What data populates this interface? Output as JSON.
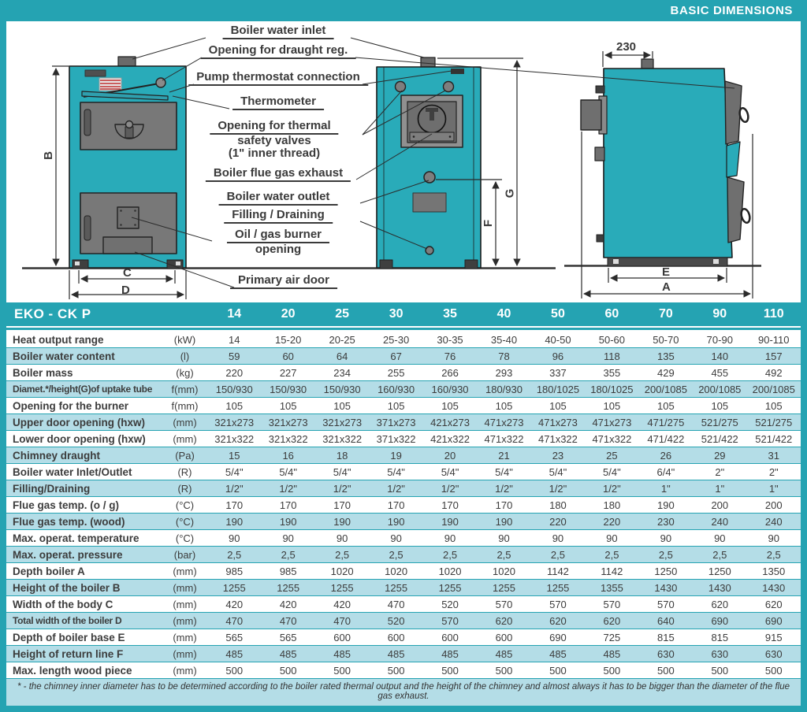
{
  "banner": {
    "title": "BASIC DIMENSIONS"
  },
  "diagram": {
    "callouts": [
      {
        "text": "Boiler water inlet"
      },
      {
        "text": "Opening for draught reg."
      },
      {
        "text": "Pump thermostat connection"
      },
      {
        "text": "Thermometer"
      },
      {
        "line1": "Opening for thermal",
        "line2": "safety valves",
        "line3": "(1\" inner thread)"
      },
      {
        "text": "Boiler flue gas exhaust"
      },
      {
        "text": "Boiler water outlet"
      },
      {
        "text": "Filling / Draining"
      },
      {
        "line1": "Oil / gas burner",
        "line2": "opening"
      },
      {
        "text": "Primary air door"
      }
    ],
    "dims": {
      "B": "B",
      "C": "C",
      "D": "D",
      "F": "F",
      "G": "G",
      "E": "E",
      "A": "A",
      "top_width": "230"
    }
  },
  "table": {
    "model": "EKO - CK P",
    "columns": [
      "14",
      "20",
      "25",
      "30",
      "35",
      "40",
      "50",
      "60",
      "70",
      "90",
      "110"
    ],
    "rows": [
      {
        "label": "Heat output range",
        "unit": "(kW)",
        "values": [
          "14",
          "15-20",
          "20-25",
          "25-30",
          "30-35",
          "35-40",
          "40-50",
          "50-60",
          "50-70",
          "70-90",
          "90-110"
        ]
      },
      {
        "label": "Boiler water content",
        "unit": "(l)",
        "values": [
          "59",
          "60",
          "64",
          "67",
          "76",
          "78",
          "96",
          "118",
          "135",
          "140",
          "157"
        ]
      },
      {
        "label": "Boiler mass",
        "unit": "(kg)",
        "values": [
          "220",
          "227",
          "234",
          "255",
          "266",
          "293",
          "337",
          "355",
          "429",
          "455",
          "492"
        ]
      },
      {
        "label": "Diamet.*/height(G)of uptake tube",
        "unit": "f(mm)",
        "values": [
          "150/930",
          "150/930",
          "150/930",
          "160/930",
          "160/930",
          "180/930",
          "180/1025",
          "180/1025",
          "200/1085",
          "200/1085",
          "200/1085"
        ]
      },
      {
        "label": "Opening for the burner",
        "unit": "f(mm)",
        "values": [
          "105",
          "105",
          "105",
          "105",
          "105",
          "105",
          "105",
          "105",
          "105",
          "105",
          "105"
        ]
      },
      {
        "label": "Upper door opening (hxw)",
        "unit": "(mm)",
        "values": [
          "321x273",
          "321x273",
          "321x273",
          "371x273",
          "421x273",
          "471x273",
          "471x273",
          "471x273",
          "471/275",
          "521/275",
          "521/275"
        ]
      },
      {
        "label": "Lower door opening (hxw)",
        "unit": "(mm)",
        "values": [
          "321x322",
          "321x322",
          "321x322",
          "371x322",
          "421x322",
          "471x322",
          "471x322",
          "471x322",
          "471/422",
          "521/422",
          "521/422"
        ]
      },
      {
        "label": "Chimney draught",
        "unit": "(Pa)",
        "values": [
          "15",
          "16",
          "18",
          "19",
          "20",
          "21",
          "23",
          "25",
          "26",
          "29",
          "31"
        ]
      },
      {
        "label": "Boiler water Inlet/Outlet",
        "unit": "(R)",
        "values": [
          "5/4\"",
          "5/4\"",
          "5/4\"",
          "5/4\"",
          "5/4\"",
          "5/4\"",
          "5/4\"",
          "5/4\"",
          "6/4\"",
          "2\"",
          "2\""
        ]
      },
      {
        "label": "Filling/Draining",
        "unit": "(R)",
        "values": [
          "1/2\"",
          "1/2\"",
          "1/2\"",
          "1/2\"",
          "1/2\"",
          "1/2\"",
          "1/2\"",
          "1/2\"",
          "1\"",
          "1\"",
          "1\""
        ]
      },
      {
        "label": "Flue gas temp. (o / g)",
        "unit": "(°C)",
        "values": [
          "170",
          "170",
          "170",
          "170",
          "170",
          "170",
          "180",
          "180",
          "190",
          "200",
          "200"
        ]
      },
      {
        "label": "Flue gas temp. (wood)",
        "unit": "(°C)",
        "values": [
          "190",
          "190",
          "190",
          "190",
          "190",
          "190",
          "220",
          "220",
          "230",
          "240",
          "240"
        ]
      },
      {
        "label": "Max. operat. temperature",
        "unit": "(°C)",
        "values": [
          "90",
          "90",
          "90",
          "90",
          "90",
          "90",
          "90",
          "90",
          "90",
          "90",
          "90"
        ]
      },
      {
        "label": "Max. operat. pressure",
        "unit": "(bar)",
        "values": [
          "2,5",
          "2,5",
          "2,5",
          "2,5",
          "2,5",
          "2,5",
          "2,5",
          "2,5",
          "2,5",
          "2,5",
          "2,5"
        ]
      },
      {
        "label": "Depth boiler A",
        "unit": "(mm)",
        "values": [
          "985",
          "985",
          "1020",
          "1020",
          "1020",
          "1020",
          "1142",
          "1142",
          "1250",
          "1250",
          "1350"
        ]
      },
      {
        "label": "Height of the boiler B",
        "unit": "(mm)",
        "values": [
          "1255",
          "1255",
          "1255",
          "1255",
          "1255",
          "1255",
          "1255",
          "1355",
          "1430",
          "1430",
          "1430"
        ]
      },
      {
        "label": "Width of the body C",
        "unit": "(mm)",
        "values": [
          "420",
          "420",
          "420",
          "470",
          "520",
          "570",
          "570",
          "570",
          "570",
          "620",
          "620"
        ]
      },
      {
        "label": "Total width of the boiler D",
        "unit": "(mm)",
        "values": [
          "470",
          "470",
          "470",
          "520",
          "570",
          "620",
          "620",
          "620",
          "640",
          "690",
          "690"
        ]
      },
      {
        "label": "Depth of boiler base  E",
        "unit": "(mm)",
        "values": [
          "565",
          "565",
          "600",
          "600",
          "600",
          "600",
          "690",
          "725",
          "815",
          "815",
          "915"
        ]
      },
      {
        "label": "Height of return line F",
        "unit": "(mm)",
        "values": [
          "485",
          "485",
          "485",
          "485",
          "485",
          "485",
          "485",
          "485",
          "630",
          "630",
          "630"
        ]
      },
      {
        "label": "Max. length wood piece",
        "unit": "(mm)",
        "values": [
          "500",
          "500",
          "500",
          "500",
          "500",
          "500",
          "500",
          "500",
          "500",
          "500",
          "500"
        ]
      }
    ]
  },
  "footnote": "* - the chimney inner diameter has to be determined according to the boiler rated thermal output and the height of the chimney and almost always it has to be bigger than the diameter of the flue gas exhaust."
}
